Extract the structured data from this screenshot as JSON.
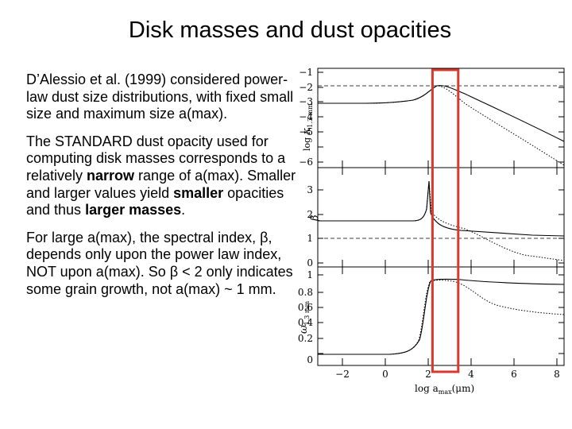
{
  "slide": {
    "title": "Disk masses and dust opacities",
    "paragraphs": [
      [
        {
          "text": "D’Alessio et al. (1999) considered power-law dust size distributions, with fixed small size and maximum size a(max).",
          "bold": false
        }
      ],
      [
        {
          "text": "The STANDARD dust opacity used for computing disk masses corresponds to a relatively ",
          "bold": false
        },
        {
          "text": "narrow",
          "bold": true
        },
        {
          "text": " range of a(max).  Smaller and larger values yield ",
          "bold": false
        },
        {
          "text": "smaller",
          "bold": true
        },
        {
          "text": " opacities and thus ",
          "bold": false
        },
        {
          "text": "larger masses",
          "bold": true
        },
        {
          "text": ".",
          "bold": false
        }
      ],
      [
        {
          "text": "For large a(max), the spectral index, β, depends only upon the power law index, NOT upon a(max).  So β < 2 only indicates some grain growth, not a(max) ~ 1 mm.",
          "bold": false
        }
      ]
    ]
  },
  "figure": {
    "highlight_color": "#d9382c",
    "highlight_range": [
      2.2,
      3.4
    ],
    "x_label_prefix": "log",
    "x_label_a": "a",
    "x_label_sub": "max",
    "x_label_unit": "(μm)",
    "x_ticks": [
      "−2",
      "0",
      "2",
      "4",
      "6",
      "8"
    ],
    "panels": [
      {
        "ylabel_log": "log",
        "ylabel_symbol": "κ",
        "ylabel_sub": "1.3 mm",
        "yticks": [
          "−1",
          "−2",
          "−3",
          "−4",
          "−5",
          "−6"
        ]
      },
      {
        "ylabel_symbol": "β",
        "yticks": [
          "3",
          "2",
          "1",
          "0"
        ]
      },
      {
        "ylabel_symbol": "ω",
        "ylabel_sub": "1.3 mm",
        "yticks": [
          "1",
          "0.8",
          "0.6",
          "0.4",
          "0.2",
          "0"
        ]
      }
    ]
  }
}
